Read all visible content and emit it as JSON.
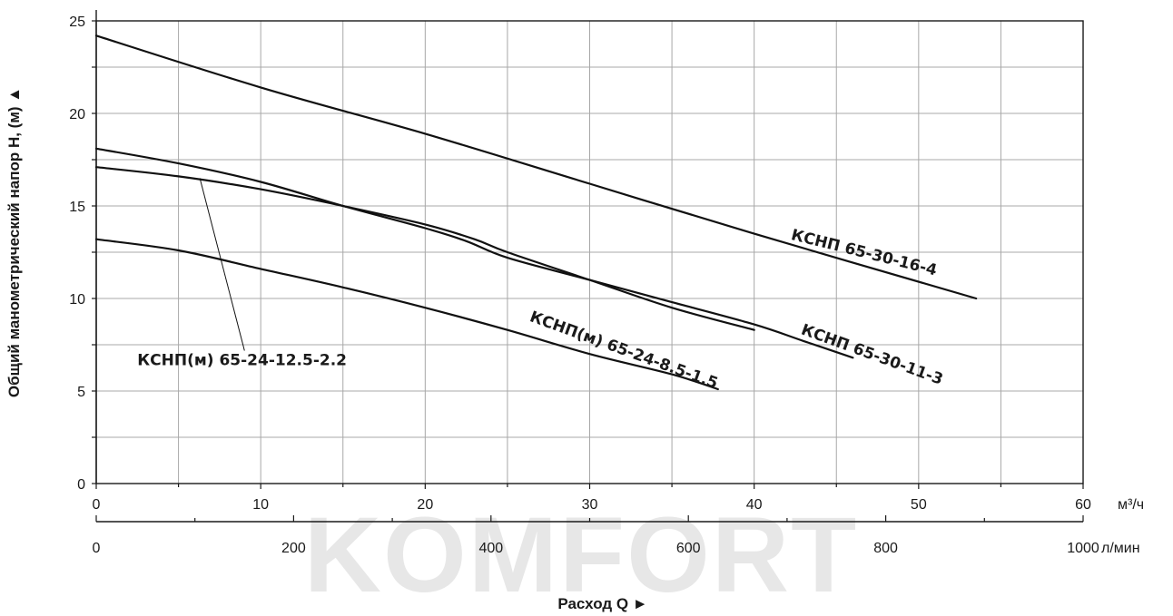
{
  "watermark": "KOMFORT",
  "chart_data": {
    "type": "line",
    "title": "",
    "ylabel": "Общий манометрический напор Н, (м) ▲",
    "xlabel": "Расход Q  ►",
    "ylim": [
      0,
      25
    ],
    "xlim": [
      0,
      60
    ],
    "grid": true,
    "y_ticks": [
      "0",
      "5",
      "10",
      "15",
      "20",
      "25"
    ],
    "x_ticks_primary": [
      "0",
      "10",
      "20",
      "30",
      "40",
      "50",
      "60"
    ],
    "x_unit_primary": "м³/ч",
    "x_ticks_secondary": [
      "0",
      "200",
      "400",
      "600",
      "800",
      "1000"
    ],
    "x_unit_secondary": "л/мин",
    "x_secondary_range": [
      0,
      1000
    ],
    "series": [
      {
        "name": "КСНП 65-30-16-4",
        "points": [
          [
            0,
            24.2
          ],
          [
            10,
            21.4
          ],
          [
            20,
            18.9
          ],
          [
            30,
            16.2
          ],
          [
            40,
            13.5
          ],
          [
            53.5,
            10.0
          ]
        ]
      },
      {
        "name": "КСНП 65-30-11-3",
        "points": [
          [
            0,
            18.1
          ],
          [
            5,
            17.3
          ],
          [
            10,
            16.3
          ],
          [
            15,
            15.0
          ],
          [
            20,
            13.8
          ],
          [
            22.5,
            13.1
          ],
          [
            25,
            12.2
          ],
          [
            30,
            11.0
          ],
          [
            35,
            9.8
          ],
          [
            40,
            8.6
          ],
          [
            43,
            7.7
          ],
          [
            46,
            6.8
          ]
        ]
      },
      {
        "name": "КСНП(м) 65-24-12.5-2.2",
        "points": [
          [
            0,
            17.1
          ],
          [
            5,
            16.6
          ],
          [
            10,
            15.9
          ],
          [
            15,
            15.0
          ],
          [
            20,
            14.0
          ],
          [
            23,
            13.2
          ],
          [
            25,
            12.5
          ],
          [
            30,
            11.0
          ],
          [
            35,
            9.5
          ],
          [
            40,
            8.3
          ]
        ]
      },
      {
        "name": "КСНП(м) 65-24-8.5-1.5",
        "points": [
          [
            0,
            13.2
          ],
          [
            5,
            12.6
          ],
          [
            10,
            11.6
          ],
          [
            15,
            10.6
          ],
          [
            20,
            9.5
          ],
          [
            25,
            8.3
          ],
          [
            30,
            7.0
          ],
          [
            35,
            5.9
          ],
          [
            37.8,
            5.1
          ]
        ]
      }
    ],
    "labels": [
      {
        "text": "КСНП 65-30-16-4",
        "at": [
          42.2,
          13.2
        ],
        "angle": 14
      },
      {
        "text": "КСНП 65-30-11-3",
        "at": [
          42.8,
          8.1
        ],
        "angle": 20
      },
      {
        "text": "КСНП(м) 65-24-8.5-1.5",
        "at": [
          26.3,
          8.8
        ],
        "angle": 20
      },
      {
        "text": "КСНП(м) 65-24-12.5-2.2",
        "at": [
          2.5,
          6.4
        ],
        "angle": 0,
        "leader_to": [
          6.3,
          16.5
        ]
      }
    ]
  }
}
